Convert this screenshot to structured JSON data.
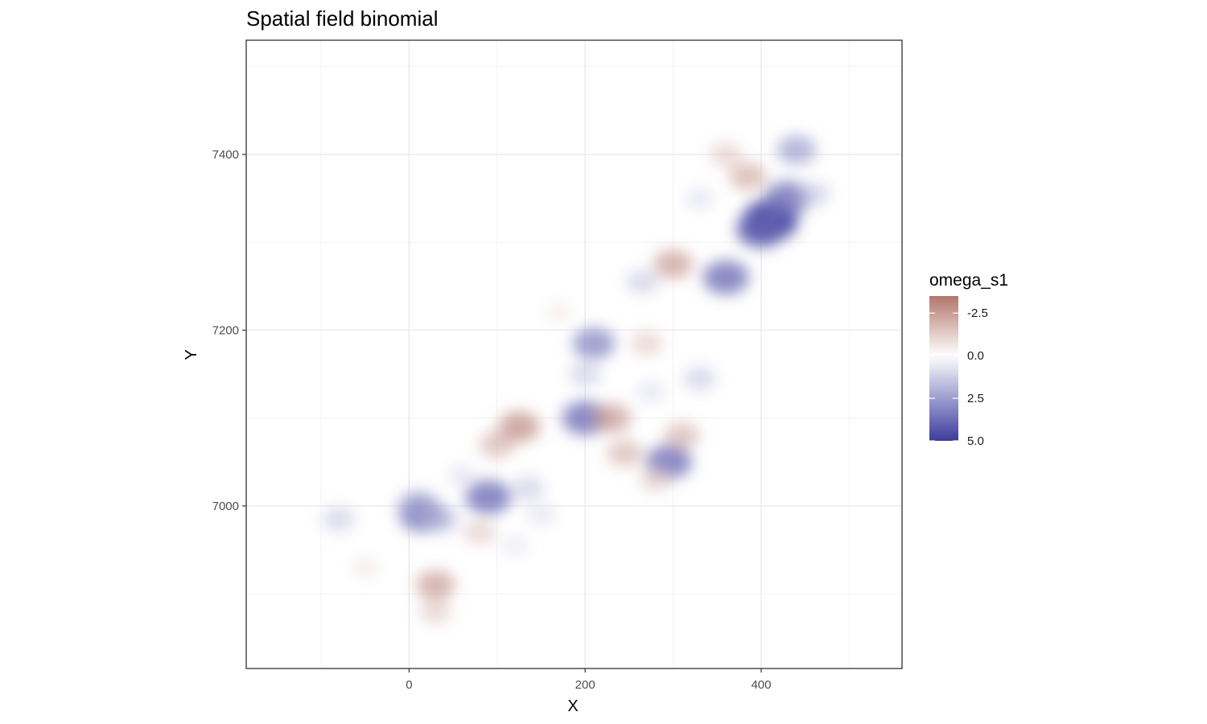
{
  "chart_data": {
    "type": "heatmap",
    "title": "Spatial field binomial",
    "xlabel": "X",
    "ylabel": "Y",
    "xlim": [
      -185,
      560
    ],
    "ylim": [
      6815,
      7530
    ],
    "x_ticks": [
      0,
      200,
      400
    ],
    "x_tick_labels": [
      "0",
      "200",
      "400"
    ],
    "y_ticks": [
      7000,
      7200,
      7400
    ],
    "y_tick_labels": [
      "7000",
      "7200",
      "7400"
    ],
    "x_minor_gridlines": [
      -100,
      100,
      300,
      500
    ],
    "y_minor_gridlines": [
      6900,
      7100,
      7300,
      7500
    ],
    "grid": true,
    "legend": {
      "title": "omega_s1",
      "placement": "right",
      "range": [
        -3.5,
        5.0
      ],
      "ticks": [
        -2.5,
        0.0,
        2.5,
        5.0
      ],
      "tick_labels": [
        "-2.5",
        "0.0",
        "2.5",
        "5.0"
      ],
      "low_color": "#b2756b",
      "mid_color": "#ffffff",
      "high_color": "#3b3b9e"
    },
    "series": [
      {
        "x": 15,
        "y": 6990,
        "value": 3.5
      },
      {
        "x": 10,
        "y": 7000,
        "value": 2.5
      },
      {
        "x": 35,
        "y": 6985,
        "value": 2.0
      },
      {
        "x": -80,
        "y": 6985,
        "value": 1.5
      },
      {
        "x": 90,
        "y": 7010,
        "value": 3.5
      },
      {
        "x": 135,
        "y": 7020,
        "value": 1.5
      },
      {
        "x": 60,
        "y": 7035,
        "value": 1.0
      },
      {
        "x": 150,
        "y": 6990,
        "value": 1.0
      },
      {
        "x": 120,
        "y": 6955,
        "value": 0.8
      },
      {
        "x": 210,
        "y": 7185,
        "value": 3.0
      },
      {
        "x": 200,
        "y": 7150,
        "value": 1.5
      },
      {
        "x": 200,
        "y": 7100,
        "value": 3.5
      },
      {
        "x": 295,
        "y": 7050,
        "value": 3.5
      },
      {
        "x": 330,
        "y": 7145,
        "value": 1.5
      },
      {
        "x": 275,
        "y": 7130,
        "value": 1.0
      },
      {
        "x": 360,
        "y": 7260,
        "value": 3.5
      },
      {
        "x": 265,
        "y": 7255,
        "value": 1.5
      },
      {
        "x": 330,
        "y": 7350,
        "value": 1.0
      },
      {
        "x": 410,
        "y": 7325,
        "value": 4.8
      },
      {
        "x": 400,
        "y": 7315,
        "value": 4.0
      },
      {
        "x": 430,
        "y": 7350,
        "value": 3.5
      },
      {
        "x": 440,
        "y": 7405,
        "value": 2.5
      },
      {
        "x": 460,
        "y": 7355,
        "value": 1.5
      },
      {
        "x": 125,
        "y": 7090,
        "value": -2.8
      },
      {
        "x": 100,
        "y": 7070,
        "value": -2.0
      },
      {
        "x": 30,
        "y": 6910,
        "value": -2.5
      },
      {
        "x": 30,
        "y": 6880,
        "value": -1.5
      },
      {
        "x": -50,
        "y": 6930,
        "value": -0.8
      },
      {
        "x": 80,
        "y": 6970,
        "value": -1.5
      },
      {
        "x": 230,
        "y": 7100,
        "value": -2.5
      },
      {
        "x": 245,
        "y": 7060,
        "value": -2.0
      },
      {
        "x": 280,
        "y": 7030,
        "value": -1.5
      },
      {
        "x": 310,
        "y": 7080,
        "value": -2.0
      },
      {
        "x": 270,
        "y": 7185,
        "value": -1.5
      },
      {
        "x": 170,
        "y": 7220,
        "value": -0.7
      },
      {
        "x": 300,
        "y": 7275,
        "value": -2.5
      },
      {
        "x": 385,
        "y": 7375,
        "value": -2.2
      },
      {
        "x": 360,
        "y": 7400,
        "value": -1.5
      }
    ]
  }
}
